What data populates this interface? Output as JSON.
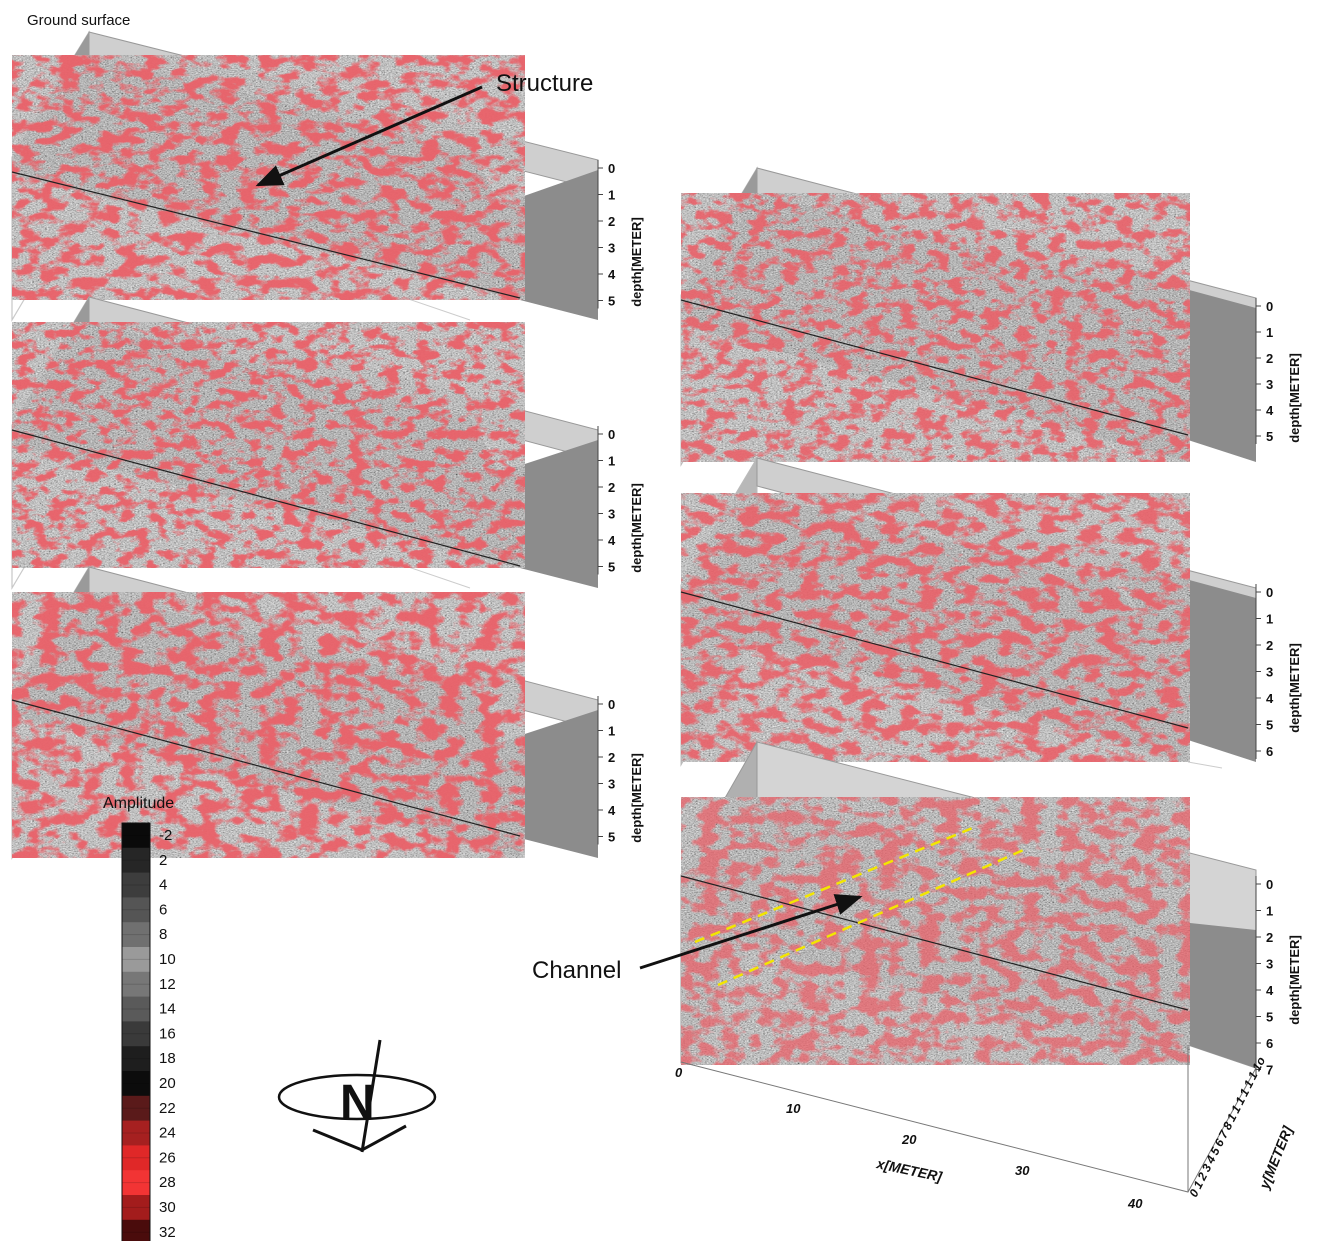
{
  "annotations": {
    "ground_surface": "Ground surface",
    "structure": "Structure",
    "channel": "Channel"
  },
  "depth_axis": {
    "label": "depth[METER]",
    "ticks_short": [
      "0",
      "1",
      "2",
      "3",
      "4",
      "5"
    ],
    "ticks_long": [
      "0",
      "1",
      "2",
      "3",
      "4",
      "5",
      "6"
    ],
    "ticks_full": [
      "0",
      "1",
      "2",
      "3",
      "4",
      "5",
      "6",
      "7"
    ]
  },
  "x_axis": {
    "label": "x[METER]",
    "ticks": [
      "0",
      "10",
      "20",
      "30",
      "40"
    ]
  },
  "y_axis": {
    "label": "y[METER]",
    "ticks": [
      "0",
      "1",
      "2",
      "3",
      "4",
      "5",
      "6",
      "7",
      "8",
      "1",
      "1",
      "1",
      "1",
      "1",
      "1",
      "1o"
    ]
  },
  "legend": {
    "title": "Amplitude",
    "labels": [
      "-2",
      "2",
      "4",
      "6",
      "8",
      "10",
      "12",
      "14",
      "16",
      "18",
      "20",
      "22",
      "24",
      "26",
      "28",
      "30",
      "32"
    ],
    "colors": [
      "#0a0a0a",
      "#262626",
      "#3d3d3d",
      "#555555",
      "#707070",
      "#9a9a9a",
      "#777777",
      "#5a5a5a",
      "#3a3a3a",
      "#1e1e1e",
      "#0c0c0c",
      "#5a1a1a",
      "#a62020",
      "#e02828",
      "#f23434",
      "#a31c1c",
      "#4a0c0c"
    ]
  },
  "compass": {
    "letter": "N"
  },
  "colors": {
    "slice_gray": "#8a8a8a",
    "slice_dark": "#3a3a3a",
    "anomaly_red": "#d0232b",
    "anomaly_dark": "#3a0808",
    "box_face": "#cfcfcf",
    "box_shadow": "#8c8c8c",
    "channel_line": "#f3e600"
  }
}
